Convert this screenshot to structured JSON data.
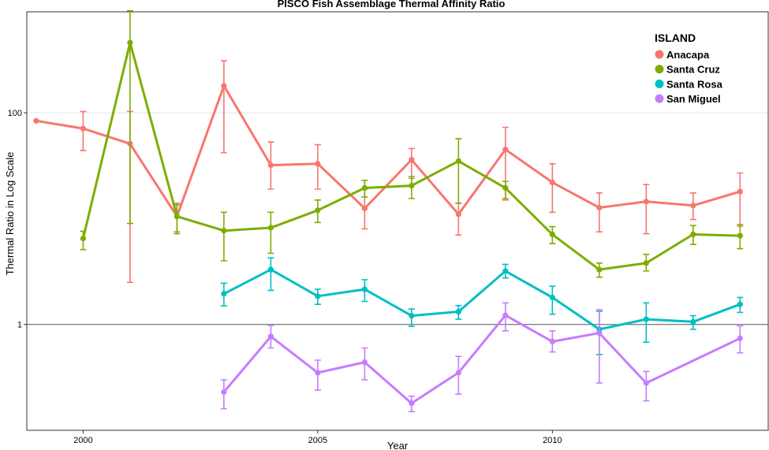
{
  "chart_data": {
    "type": "line",
    "title": "PISCO Fish Assemblage Thermal Affinity Ratio",
    "xlabel": "Year",
    "ylabel": "Thermal Ratio in Log Scale",
    "xlim": [
      1998.8,
      2014.6
    ],
    "ylim": [
      0.1,
      900
    ],
    "y_scale": "log",
    "x_ticks": [
      2000,
      2005,
      2010
    ],
    "y_ticks": [
      1,
      100
    ],
    "reference_line": 1,
    "legend": {
      "title": "ISLAND",
      "position": "top-right"
    },
    "series": [
      {
        "name": "Anacapa",
        "color": "#F8766D",
        "points": [
          {
            "x": 1999,
            "y": 84
          },
          {
            "x": 2000,
            "y": 71,
            "lo": 44,
            "hi": 103
          },
          {
            "x": 2001,
            "y": 51,
            "lo": 2.5,
            "hi": 103
          },
          {
            "x": 2002,
            "y": 10.5,
            "lo": 7.5,
            "hi": 14
          },
          {
            "x": 2003,
            "y": 180,
            "lo": 42,
            "hi": 310
          },
          {
            "x": 2004,
            "y": 32,
            "lo": 19,
            "hi": 53
          },
          {
            "x": 2005,
            "y": 33,
            "lo": 19,
            "hi": 50
          },
          {
            "x": 2006,
            "y": 12.5,
            "lo": 8,
            "hi": 19
          },
          {
            "x": 2007,
            "y": 36,
            "lo": 24,
            "hi": 46
          },
          {
            "x": 2008,
            "y": 11,
            "lo": 7,
            "hi": 14
          },
          {
            "x": 2009,
            "y": 45,
            "lo": 15,
            "hi": 73
          },
          {
            "x": 2010,
            "y": 22,
            "lo": 11.5,
            "hi": 33
          },
          {
            "x": 2011,
            "y": 12.7,
            "lo": 7.5,
            "hi": 17.5
          },
          {
            "x": 2012,
            "y": 14.5,
            "lo": 7.2,
            "hi": 21
          },
          {
            "x": 2013,
            "y": 13.3,
            "lo": 9.8,
            "hi": 17.5
          },
          {
            "x": 2014,
            "y": 18,
            "lo": 8.5,
            "hi": 27
          }
        ]
      },
      {
        "name": "Santa Cruz",
        "color": "#7CAE00",
        "points": [
          {
            "x": 2000,
            "y": 6.5,
            "lo": 5.1,
            "hi": 7.6
          },
          {
            "x": 2001,
            "y": 460,
            "lo": 9,
            "hi": 920
          },
          {
            "x": 2002,
            "y": 10.5,
            "lo": 7.2,
            "hi": 13.5
          },
          {
            "x": 2003,
            "y": 7.7,
            "lo": 4,
            "hi": 11.5
          },
          {
            "x": 2004,
            "y": 8.2,
            "lo": 4.7,
            "hi": 11.5
          },
          {
            "x": 2005,
            "y": 12,
            "lo": 9.2,
            "hi": 15
          },
          {
            "x": 2006,
            "y": 19.5,
            "lo": 16,
            "hi": 23
          },
          {
            "x": 2007,
            "y": 20.5,
            "lo": 15.5,
            "hi": 25
          },
          {
            "x": 2008,
            "y": 35,
            "lo": 14,
            "hi": 57
          },
          {
            "x": 2009,
            "y": 19.5,
            "lo": 15.5,
            "hi": 22.5
          },
          {
            "x": 2010,
            "y": 7.1,
            "lo": 5.8,
            "hi": 8.4
          },
          {
            "x": 2011,
            "y": 3.3,
            "lo": 2.8,
            "hi": 3.8
          },
          {
            "x": 2012,
            "y": 3.8,
            "lo": 3.2,
            "hi": 4.6
          },
          {
            "x": 2013,
            "y": 7.1,
            "lo": 5.7,
            "hi": 8.6
          },
          {
            "x": 2014,
            "y": 6.9,
            "lo": 5.2,
            "hi": 8.8
          }
        ]
      },
      {
        "name": "Santa Rosa",
        "color": "#00BFC4",
        "points": [
          {
            "x": 2003,
            "y": 1.95,
            "lo": 1.5,
            "hi": 2.45
          },
          {
            "x": 2004,
            "y": 3.3,
            "lo": 2.1,
            "hi": 4.25
          },
          {
            "x": 2005,
            "y": 1.85,
            "lo": 1.55,
            "hi": 2.15
          },
          {
            "x": 2006,
            "y": 2.15,
            "lo": 1.65,
            "hi": 2.65
          },
          {
            "x": 2007,
            "y": 1.21,
            "lo": 0.96,
            "hi": 1.4
          },
          {
            "x": 2008,
            "y": 1.32,
            "lo": 1.12,
            "hi": 1.51
          },
          {
            "x": 2009,
            "y": 3.2,
            "lo": 2.75,
            "hi": 3.7
          },
          {
            "x": 2010,
            "y": 1.8,
            "lo": 1.25,
            "hi": 2.3
          },
          {
            "x": 2011,
            "y": 0.9,
            "lo": 0.52,
            "hi": 1.33
          },
          {
            "x": 2012,
            "y": 1.12,
            "lo": 0.68,
            "hi": 1.6
          },
          {
            "x": 2013,
            "y": 1.06,
            "lo": 0.9,
            "hi": 1.21
          },
          {
            "x": 2014,
            "y": 1.55,
            "lo": 1.3,
            "hi": 1.8
          }
        ]
      },
      {
        "name": "San Miguel",
        "color": "#C77CFF",
        "points": [
          {
            "x": 2003,
            "y": 0.23,
            "lo": 0.16,
            "hi": 0.3
          },
          {
            "x": 2004,
            "y": 0.77,
            "lo": 0.6,
            "hi": 0.98
          },
          {
            "x": 2005,
            "y": 0.35,
            "lo": 0.24,
            "hi": 0.46
          },
          {
            "x": 2006,
            "y": 0.44,
            "lo": 0.3,
            "hi": 0.6
          },
          {
            "x": 2007,
            "y": 0.18,
            "lo": 0.15,
            "hi": 0.21
          },
          {
            "x": 2008,
            "y": 0.35,
            "lo": 0.22,
            "hi": 0.5
          },
          {
            "x": 2009,
            "y": 1.22,
            "lo": 0.87,
            "hi": 1.6
          },
          {
            "x": 2010,
            "y": 0.69,
            "lo": 0.55,
            "hi": 0.87
          },
          {
            "x": 2011,
            "y": 0.83,
            "lo": 0.28,
            "hi": 1.38
          },
          {
            "x": 2012,
            "y": 0.28,
            "lo": 0.19,
            "hi": 0.36
          },
          {
            "x": 2014,
            "y": 0.74,
            "lo": 0.54,
            "hi": 0.97
          }
        ]
      }
    ]
  }
}
